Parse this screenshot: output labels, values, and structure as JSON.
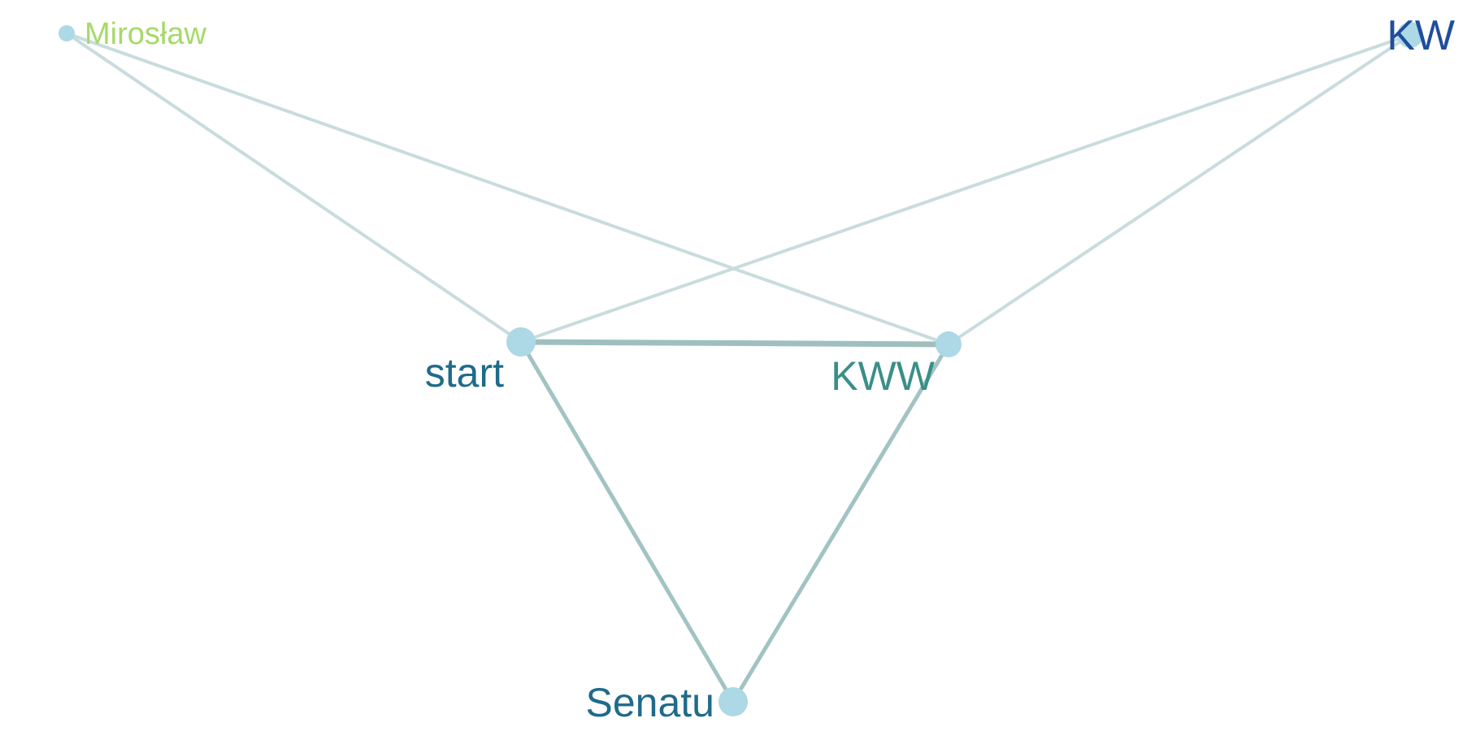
{
  "graph": {
    "node_color": "#add8e6",
    "nodes": [
      {
        "id": "miroslaw",
        "label": "Mirosław",
        "label_color": "#a6d96a"
      },
      {
        "id": "kw",
        "label": "KW",
        "label_color": "#1f4e9c"
      },
      {
        "id": "start",
        "label": "start",
        "label_color": "#1f6b8a"
      },
      {
        "id": "kww",
        "label": "KWW",
        "label_color": "#3a8f88"
      },
      {
        "id": "senatu",
        "label": "Senatu",
        "label_color": "#1f6b8a"
      }
    ],
    "edges": [
      {
        "source": "miroslaw",
        "target": "start",
        "strength": "weak",
        "color": "#c9dcdd"
      },
      {
        "source": "miroslaw",
        "target": "kww",
        "strength": "weak",
        "color": "#c9dcdd"
      },
      {
        "source": "kw",
        "target": "start",
        "strength": "weak",
        "color": "#c9dcdd"
      },
      {
        "source": "kw",
        "target": "kww",
        "strength": "weak",
        "color": "#c9dcdd"
      },
      {
        "source": "start",
        "target": "kww",
        "strength": "strong",
        "color": "#9fbfbf"
      },
      {
        "source": "start",
        "target": "senatu",
        "strength": "medium",
        "color": "#a3c3c3"
      },
      {
        "source": "kww",
        "target": "senatu",
        "strength": "medium",
        "color": "#a3c3c3"
      }
    ]
  }
}
